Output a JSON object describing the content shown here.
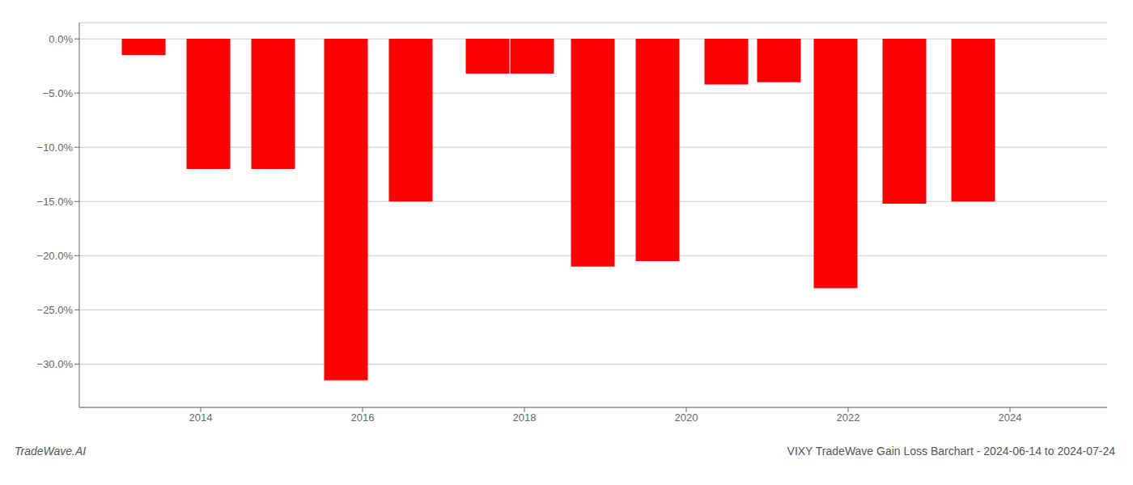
{
  "chart_data": {
    "type": "bar",
    "title": "VIXY TradeWave Gain Loss Barchart - 2024-06-14 to 2024-07-24",
    "annotations": [
      "TradeWave.AI"
    ],
    "x": [
      2013.3,
      2014.1,
      2014.9,
      2015.8,
      2016.6,
      2017.55,
      2018.1,
      2018.85,
      2019.65,
      2020.5,
      2021.15,
      2021.85,
      2022.7,
      2023.55
    ],
    "values": [
      -1.5,
      -12.0,
      -12.0,
      -31.5,
      -15.0,
      -3.2,
      -3.2,
      -21.0,
      -20.5,
      -4.2,
      -4.0,
      -23.0,
      -15.2,
      -15.0
    ],
    "color": "#ff0000",
    "xlim": [
      2012.5,
      2025.2
    ],
    "xticks": [
      2014,
      2016,
      2018,
      2020,
      2022,
      2024
    ],
    "ylim": [
      -34,
      1.5
    ],
    "yticks": [
      {
        "value": 0.0,
        "label": "0.0%"
      },
      {
        "value": -5.0,
        "label": "−5.0%"
      },
      {
        "value": -10.0,
        "label": "−10.0%"
      },
      {
        "value": -15.0,
        "label": "−15.0%"
      },
      {
        "value": -20.0,
        "label": "−20.0%"
      },
      {
        "value": -25.0,
        "label": "−25.0%"
      },
      {
        "value": -30.0,
        "label": "−30.0%"
      }
    ],
    "grid": true
  }
}
